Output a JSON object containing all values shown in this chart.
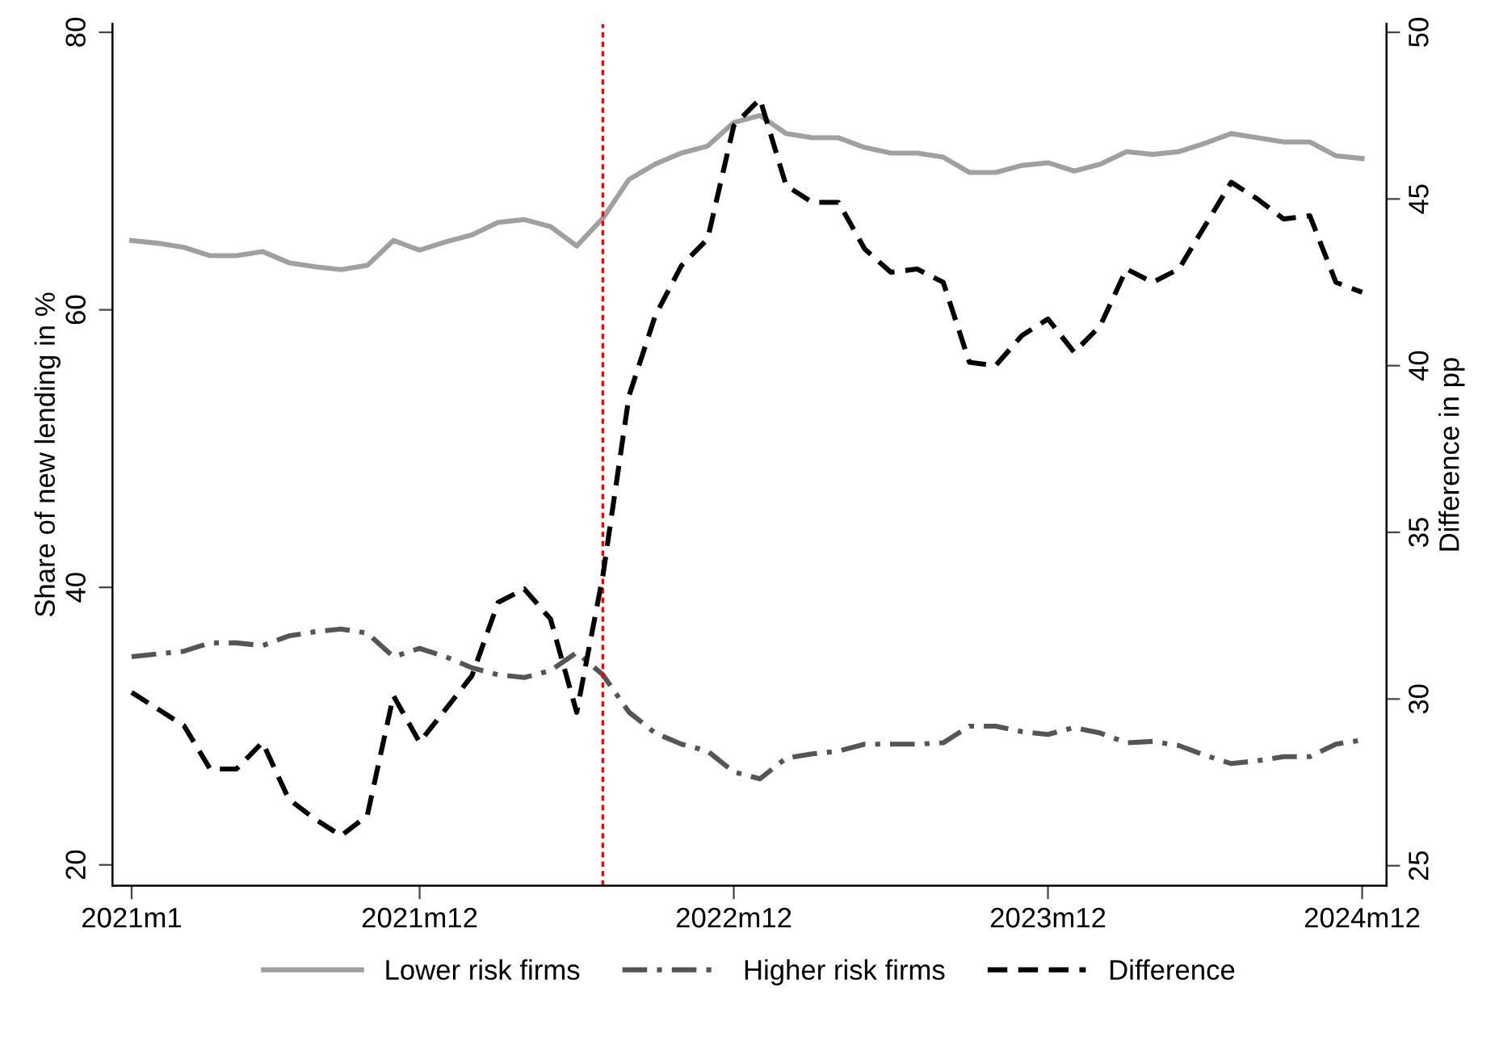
{
  "chart_data": {
    "type": "line",
    "ylabel": "Share of new lending in %",
    "y2label": "Difference in pp",
    "x": [
      "2021-01",
      "2021-02",
      "2021-03",
      "2021-04",
      "2021-05",
      "2021-06",
      "2021-07",
      "2021-08",
      "2021-09",
      "2021-10",
      "2021-11",
      "2021-12",
      "2022-01",
      "2022-02",
      "2022-03",
      "2022-04",
      "2022-05",
      "2022-06",
      "2022-07",
      "2022-08",
      "2022-09",
      "2022-10",
      "2022-11",
      "2022-12",
      "2023-01",
      "2023-02",
      "2023-03",
      "2023-04",
      "2023-05",
      "2023-06",
      "2023-07",
      "2023-08",
      "2023-09",
      "2023-10",
      "2023-11",
      "2023-12",
      "2024-01",
      "2024-02",
      "2024-03",
      "2024-04",
      "2024-05",
      "2024-06",
      "2024-07",
      "2024-08",
      "2024-09",
      "2024-10",
      "2024-11",
      "2024-12"
    ],
    "series": [
      {
        "name": "Lower risk firms",
        "color": "#a0a0a0",
        "line_style": "solid",
        "values": [
          65.0,
          64.8,
          64.5,
          63.9,
          63.9,
          64.2,
          63.4,
          63.1,
          62.9,
          63.2,
          65.0,
          64.3,
          64.9,
          65.4,
          66.3,
          66.5,
          66.0,
          64.6,
          66.6,
          69.4,
          70.5,
          71.3,
          71.8,
          73.5,
          74.0,
          72.7,
          72.4,
          72.4,
          71.7,
          71.3,
          71.3,
          71.0,
          69.9,
          69.9,
          70.4,
          70.6,
          70.0,
          70.5,
          71.4,
          71.2,
          71.4,
          72.0,
          72.7,
          72.4,
          72.1,
          72.1,
          71.1,
          70.9
        ]
      },
      {
        "name": "Higher risk firms",
        "color": "#555555",
        "line_style": "dashdot",
        "values": [
          35.0,
          35.2,
          35.4,
          36.0,
          36.0,
          35.8,
          36.5,
          36.8,
          37.0,
          36.7,
          35.0,
          35.6,
          35.0,
          34.2,
          33.7,
          33.5,
          34.0,
          35.3,
          33.7,
          31.0,
          29.5,
          28.7,
          28.2,
          26.7,
          26.2,
          27.7,
          28.0,
          28.2,
          28.7,
          28.7,
          28.7,
          28.8,
          30.0,
          30.0,
          29.6,
          29.4,
          29.9,
          29.5,
          28.8,
          28.9,
          28.6,
          27.9,
          27.3,
          27.5,
          27.8,
          27.8,
          28.7,
          29.0
        ]
      },
      {
        "name": "Difference",
        "color": "#000000",
        "line_style": "dashed",
        "axis": "y2",
        "values": [
          30.2,
          29.7,
          29.2,
          27.9,
          27.9,
          28.7,
          27.0,
          26.4,
          25.9,
          26.5,
          30.1,
          28.7,
          29.7,
          30.7,
          32.9,
          33.3,
          32.4,
          29.6,
          33.7,
          39.1,
          41.5,
          43.0,
          43.8,
          47.2,
          48.0,
          45.4,
          44.9,
          44.9,
          43.5,
          42.8,
          42.9,
          42.5,
          40.1,
          40.0,
          40.9,
          41.4,
          40.4,
          41.2,
          42.9,
          42.5,
          42.9,
          44.2,
          45.5,
          45.0,
          44.4,
          44.5,
          42.5,
          42.2
        ]
      }
    ],
    "xlim": [
      "2020-12-09",
      "2024-12-29"
    ],
    "xticks": [
      {
        "value": "2021-01",
        "label": "2021m1"
      },
      {
        "value": "2021-12",
        "label": "2021m12"
      },
      {
        "value": "2022-12",
        "label": "2022m12"
      },
      {
        "value": "2023-12",
        "label": "2023m12"
      },
      {
        "value": "2024-12",
        "label": "2024m12"
      }
    ],
    "ylim": [
      18.5,
      80.6
    ],
    "yticks": [
      20,
      40,
      60,
      80
    ],
    "y2lim": [
      24.4,
      50.25
    ],
    "y2ticks": [
      25,
      30,
      35,
      40,
      45,
      50
    ],
    "ref_lines": [
      {
        "axis": "x",
        "value": "2022-07",
        "color": "#ff0000",
        "line_style": "dotted"
      }
    ],
    "grid": false,
    "legend": "bottom",
    "marker": "none"
  }
}
